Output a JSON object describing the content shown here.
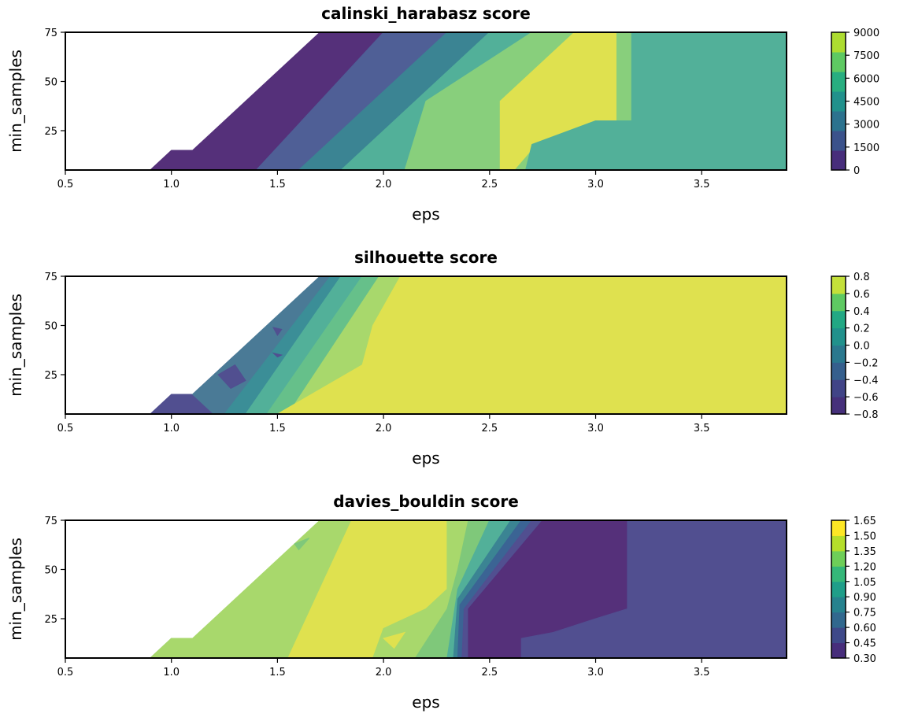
{
  "chart_data": [
    {
      "type": "contour",
      "title": "calinski_harabasz score",
      "xlabel": "eps",
      "ylabel": "min_samples",
      "xlim": [
        0.5,
        3.9
      ],
      "ylim": [
        5,
        75
      ],
      "xticks": [
        "0.5",
        "1.0",
        "1.5",
        "2.0",
        "2.5",
        "3.0",
        "3.5"
      ],
      "yticks": [
        "25",
        "50",
        "75"
      ],
      "colorbar": {
        "ticks": [
          "0",
          "1500",
          "3000",
          "4500",
          "6000",
          "7500",
          "9000"
        ],
        "levels": [
          0,
          1500,
          3000,
          4500,
          6000,
          7500,
          9000
        ],
        "colors": [
          "#472d7b",
          "#3b528b",
          "#2c728e",
          "#21918c",
          "#28ae80",
          "#5ec962",
          "#addc30"
        ]
      },
      "regions": [
        {
          "level": "0-1500",
          "color": "#55307a",
          "points": [
            [
              0.9,
              5
            ],
            [
              1.0,
              15
            ],
            [
              1.1,
              15
            ],
            [
              1.7,
              75
            ],
            [
              2.0,
              75
            ],
            [
              1.4,
              5
            ]
          ]
        },
        {
          "level": "1500-3000",
          "color": "#4f5f96",
          "points": [
            [
              1.4,
              5
            ],
            [
              2.0,
              75
            ],
            [
              2.3,
              75
            ],
            [
              1.6,
              5
            ]
          ]
        },
        {
          "level": "3000-4500",
          "color": "#3b8493",
          "points": [
            [
              1.6,
              5
            ],
            [
              2.3,
              75
            ],
            [
              2.5,
              75
            ],
            [
              1.8,
              5
            ]
          ]
        },
        {
          "level": "4500-6000",
          "color": "#52b099",
          "points": [
            [
              1.8,
              5
            ],
            [
              2.5,
              75
            ],
            [
              2.7,
              75
            ],
            [
              2.2,
              40
            ],
            [
              2.1,
              5
            ]
          ]
        },
        {
          "level": "6000-7500",
          "color": "#88cf7c",
          "points": [
            [
              2.1,
              5
            ],
            [
              2.2,
              40
            ],
            [
              2.7,
              75
            ],
            [
              2.9,
              75
            ],
            [
              2.55,
              40
            ],
            [
              2.55,
              5
            ]
          ]
        },
        {
          "level": "7500-9000",
          "color": "#dfe14f",
          "points": [
            [
              2.55,
              5
            ],
            [
              2.55,
              40
            ],
            [
              2.9,
              75
            ],
            [
              3.1,
              75
            ],
            [
              3.1,
              30
            ],
            [
              2.9,
              25
            ],
            [
              2.7,
              15
            ],
            [
              2.62,
              5
            ]
          ]
        },
        {
          "level": "6000-7500",
          "color": "#88cf7c",
          "points": [
            [
              2.62,
              5
            ],
            [
              2.7,
              15
            ],
            [
              2.9,
              25
            ],
            [
              3.1,
              30
            ],
            [
              3.1,
              75
            ],
            [
              3.17,
              75
            ],
            [
              3.17,
              30
            ],
            [
              3.0,
              30
            ],
            [
              2.7,
              18
            ],
            [
              2.67,
              5
            ]
          ]
        },
        {
          "level": "4500-6000",
          "color": "#52b099",
          "points": [
            [
              2.67,
              5
            ],
            [
              2.7,
              18
            ],
            [
              3.0,
              30
            ],
            [
              3.17,
              30
            ],
            [
              3.17,
              75
            ],
            [
              3.9,
              75
            ],
            [
              3.9,
              5
            ]
          ]
        }
      ]
    },
    {
      "type": "contour",
      "title": "silhouette score",
      "xlabel": "eps",
      "ylabel": "min_samples",
      "xlim": [
        0.5,
        3.9
      ],
      "ylim": [
        5,
        75
      ],
      "xticks": [
        "0.5",
        "1.0",
        "1.5",
        "2.0",
        "2.5",
        "3.0",
        "3.5"
      ],
      "yticks": [
        "25",
        "50",
        "75"
      ],
      "colorbar": {
        "ticks": [
          "0.8",
          "0.6",
          "0.4",
          "0.2",
          "0.0",
          "−0.2",
          "−0.4",
          "−0.6",
          "−0.8"
        ],
        "levels": [
          -0.8,
          -0.6,
          -0.4,
          -0.2,
          0.0,
          0.2,
          0.4,
          0.6,
          0.8
        ],
        "colors": [
          "#46307b",
          "#414487",
          "#355f8d",
          "#2a788e",
          "#21918c",
          "#22a884",
          "#5ec962",
          "#c4e03a"
        ]
      },
      "regions": [
        {
          "level": "-0.6--0.4",
          "color": "#514f90",
          "points": [
            [
              0.9,
              5
            ],
            [
              1.0,
              15
            ],
            [
              1.1,
              15
            ],
            [
              1.3,
              35
            ],
            [
              1.2,
              5
            ]
          ]
        },
        {
          "level": "-0.4--0.2",
          "color": "#4a7a96",
          "points": [
            [
              1.1,
              15
            ],
            [
              1.3,
              35
            ],
            [
              1.7,
              75
            ],
            [
              1.75,
              75
            ],
            [
              1.25,
              5
            ],
            [
              1.2,
              5
            ]
          ]
        },
        {
          "level": "-0.2-0.0",
          "color": "#3b8e97",
          "points": [
            [
              1.25,
              5
            ],
            [
              1.75,
              75
            ],
            [
              1.8,
              75
            ],
            [
              1.35,
              5
            ]
          ]
        },
        {
          "level": "0.0-0.2",
          "color": "#52b099",
          "points": [
            [
              1.35,
              5
            ],
            [
              1.8,
              75
            ],
            [
              1.9,
              75
            ],
            [
              1.45,
              5
            ]
          ]
        },
        {
          "level": "0.2-0.4",
          "color": "#66c08a",
          "points": [
            [
              1.45,
              5
            ],
            [
              1.9,
              75
            ],
            [
              1.98,
              75
            ],
            [
              1.55,
              5
            ]
          ]
        },
        {
          "level": "0.4-0.6",
          "color": "#a8d86c",
          "points": [
            [
              1.55,
              5
            ],
            [
              1.98,
              75
            ],
            [
              2.08,
              75
            ],
            [
              1.95,
              50
            ],
            [
              1.9,
              30
            ],
            [
              1.5,
              5
            ]
          ]
        },
        {
          "level": "0.6-0.8",
          "color": "#dfe14f",
          "points": [
            [
              1.5,
              5
            ],
            [
              1.9,
              30
            ],
            [
              1.95,
              50
            ],
            [
              2.08,
              75
            ],
            [
              3.9,
              75
            ],
            [
              3.9,
              5
            ]
          ]
        }
      ],
      "patches": [
        {
          "color": "#514f90",
          "points": [
            [
              1.22,
              25
            ],
            [
              1.3,
              30
            ],
            [
              1.35,
              22
            ],
            [
              1.28,
              18
            ]
          ]
        },
        {
          "color": "#514f90",
          "points": [
            [
              1.5,
              45
            ],
            [
              1.52,
              48
            ],
            [
              1.48,
              49
            ]
          ]
        },
        {
          "color": "#514f90",
          "points": [
            [
              1.5,
              34
            ],
            [
              1.52,
              35
            ],
            [
              1.48,
              36
            ]
          ]
        }
      ]
    },
    {
      "type": "contour",
      "title": "davies_bouldin score",
      "xlabel": "eps",
      "ylabel": "min_samples",
      "xlim": [
        0.5,
        3.9
      ],
      "ylim": [
        5,
        75
      ],
      "xticks": [
        "0.5",
        "1.0",
        "1.5",
        "2.0",
        "2.5",
        "3.0",
        "3.5"
      ],
      "yticks": [
        "25",
        "50",
        "75"
      ],
      "colorbar": {
        "ticks": [
          "1.65",
          "1.50",
          "1.35",
          "1.20",
          "1.05",
          "0.90",
          "0.75",
          "0.60",
          "0.45",
          "0.30"
        ],
        "levels": [
          0.3,
          0.45,
          0.6,
          0.75,
          0.9,
          1.05,
          1.2,
          1.35,
          1.5,
          1.65
        ],
        "colors": [
          "#472d7b",
          "#3e4989",
          "#31688e",
          "#26828e",
          "#1f9e89",
          "#35b779",
          "#6ece58",
          "#b5de2b",
          "#fde725"
        ]
      },
      "regions": [
        {
          "level": "1.20-1.35",
          "color": "#7fc87a",
          "points": [
            [
              0.9,
              5
            ],
            [
              1.0,
              15
            ],
            [
              1.1,
              15
            ],
            [
              1.15,
              5
            ]
          ]
        },
        {
          "level": "1.35-1.50",
          "color": "#a8d86c",
          "points": [
            [
              1.1,
              15
            ],
            [
              1.0,
              15
            ],
            [
              0.9,
              5
            ],
            [
              1.15,
              5
            ],
            [
              1.55,
              5
            ],
            [
              1.85,
              75
            ],
            [
              1.7,
              75
            ]
          ]
        },
        {
          "level": "1.50-1.65",
          "color": "#dfe14f",
          "points": [
            [
              1.55,
              5
            ],
            [
              1.85,
              75
            ],
            [
              2.3,
              75
            ],
            [
              2.3,
              40
            ],
            [
              2.2,
              30
            ],
            [
              2.0,
              20
            ],
            [
              1.95,
              5
            ]
          ]
        },
        {
          "level": "1.35-1.50",
          "color": "#a8d86c",
          "points": [
            [
              1.95,
              5
            ],
            [
              2.0,
              20
            ],
            [
              2.2,
              30
            ],
            [
              2.3,
              40
            ],
            [
              2.3,
              75
            ],
            [
              2.4,
              75
            ],
            [
              2.35,
              50
            ],
            [
              2.3,
              30
            ],
            [
              2.15,
              5
            ]
          ]
        },
        {
          "level": "1.20-1.35",
          "color": "#7fc87a",
          "points": [
            [
              2.15,
              5
            ],
            [
              2.3,
              30
            ],
            [
              2.35,
              50
            ],
            [
              2.4,
              75
            ],
            [
              2.5,
              75
            ],
            [
              2.35,
              40
            ],
            [
              2.3,
              5
            ]
          ]
        },
        {
          "level": "1.05-1.20",
          "color": "#52b099",
          "points": [
            [
              2.3,
              5
            ],
            [
              2.35,
              40
            ],
            [
              2.5,
              75
            ],
            [
              2.6,
              75
            ],
            [
              2.35,
              35
            ],
            [
              2.33,
              5
            ]
          ]
        },
        {
          "level": "0.90-1.05",
          "color": "#3b8493",
          "points": [
            [
              2.33,
              5
            ],
            [
              2.35,
              35
            ],
            [
              2.6,
              75
            ],
            [
              2.65,
              75
            ],
            [
              2.36,
              32
            ],
            [
              2.35,
              5
            ]
          ]
        },
        {
          "level": "0.75-0.90",
          "color": "#3b6494",
          "points": [
            [
              2.35,
              5
            ],
            [
              2.36,
              32
            ],
            [
              2.65,
              75
            ],
            [
              2.7,
              75
            ],
            [
              2.38,
              30
            ],
            [
              2.37,
              5
            ]
          ]
        },
        {
          "level": "0.60-0.75",
          "color": "#514f90",
          "points": [
            [
              2.37,
              5
            ],
            [
              2.38,
              30
            ],
            [
              2.7,
              75
            ],
            [
              2.75,
              75
            ],
            [
              2.4,
              30
            ],
            [
              2.4,
              5
            ]
          ]
        },
        {
          "level": "0.30-0.45",
          "color": "#55307a",
          "points": [
            [
              2.4,
              5
            ],
            [
              2.4,
              30
            ],
            [
              2.75,
              75
            ],
            [
              3.15,
              75
            ],
            [
              3.15,
              30
            ],
            [
              3.0,
              25
            ],
            [
              2.8,
              18
            ],
            [
              2.65,
              15
            ],
            [
              2.65,
              5
            ]
          ]
        },
        {
          "level": "0.45-0.60",
          "color": "#514f90",
          "points": [
            [
              2.65,
              5
            ],
            [
              2.65,
              15
            ],
            [
              2.8,
              18
            ],
            [
              3.0,
              25
            ],
            [
              3.15,
              30
            ],
            [
              3.15,
              75
            ],
            [
              3.9,
              75
            ],
            [
              3.9,
              5
            ]
          ]
        }
      ],
      "patches": [
        {
          "color": "#7fc87a",
          "points": [
            [
              1.6,
              60
            ],
            [
              1.65,
              66
            ],
            [
              1.58,
              63
            ]
          ]
        },
        {
          "color": "#dfe14f",
          "points": [
            [
              2.0,
              15
            ],
            [
              2.1,
              18
            ],
            [
              2.05,
              10
            ]
          ]
        }
      ]
    }
  ]
}
